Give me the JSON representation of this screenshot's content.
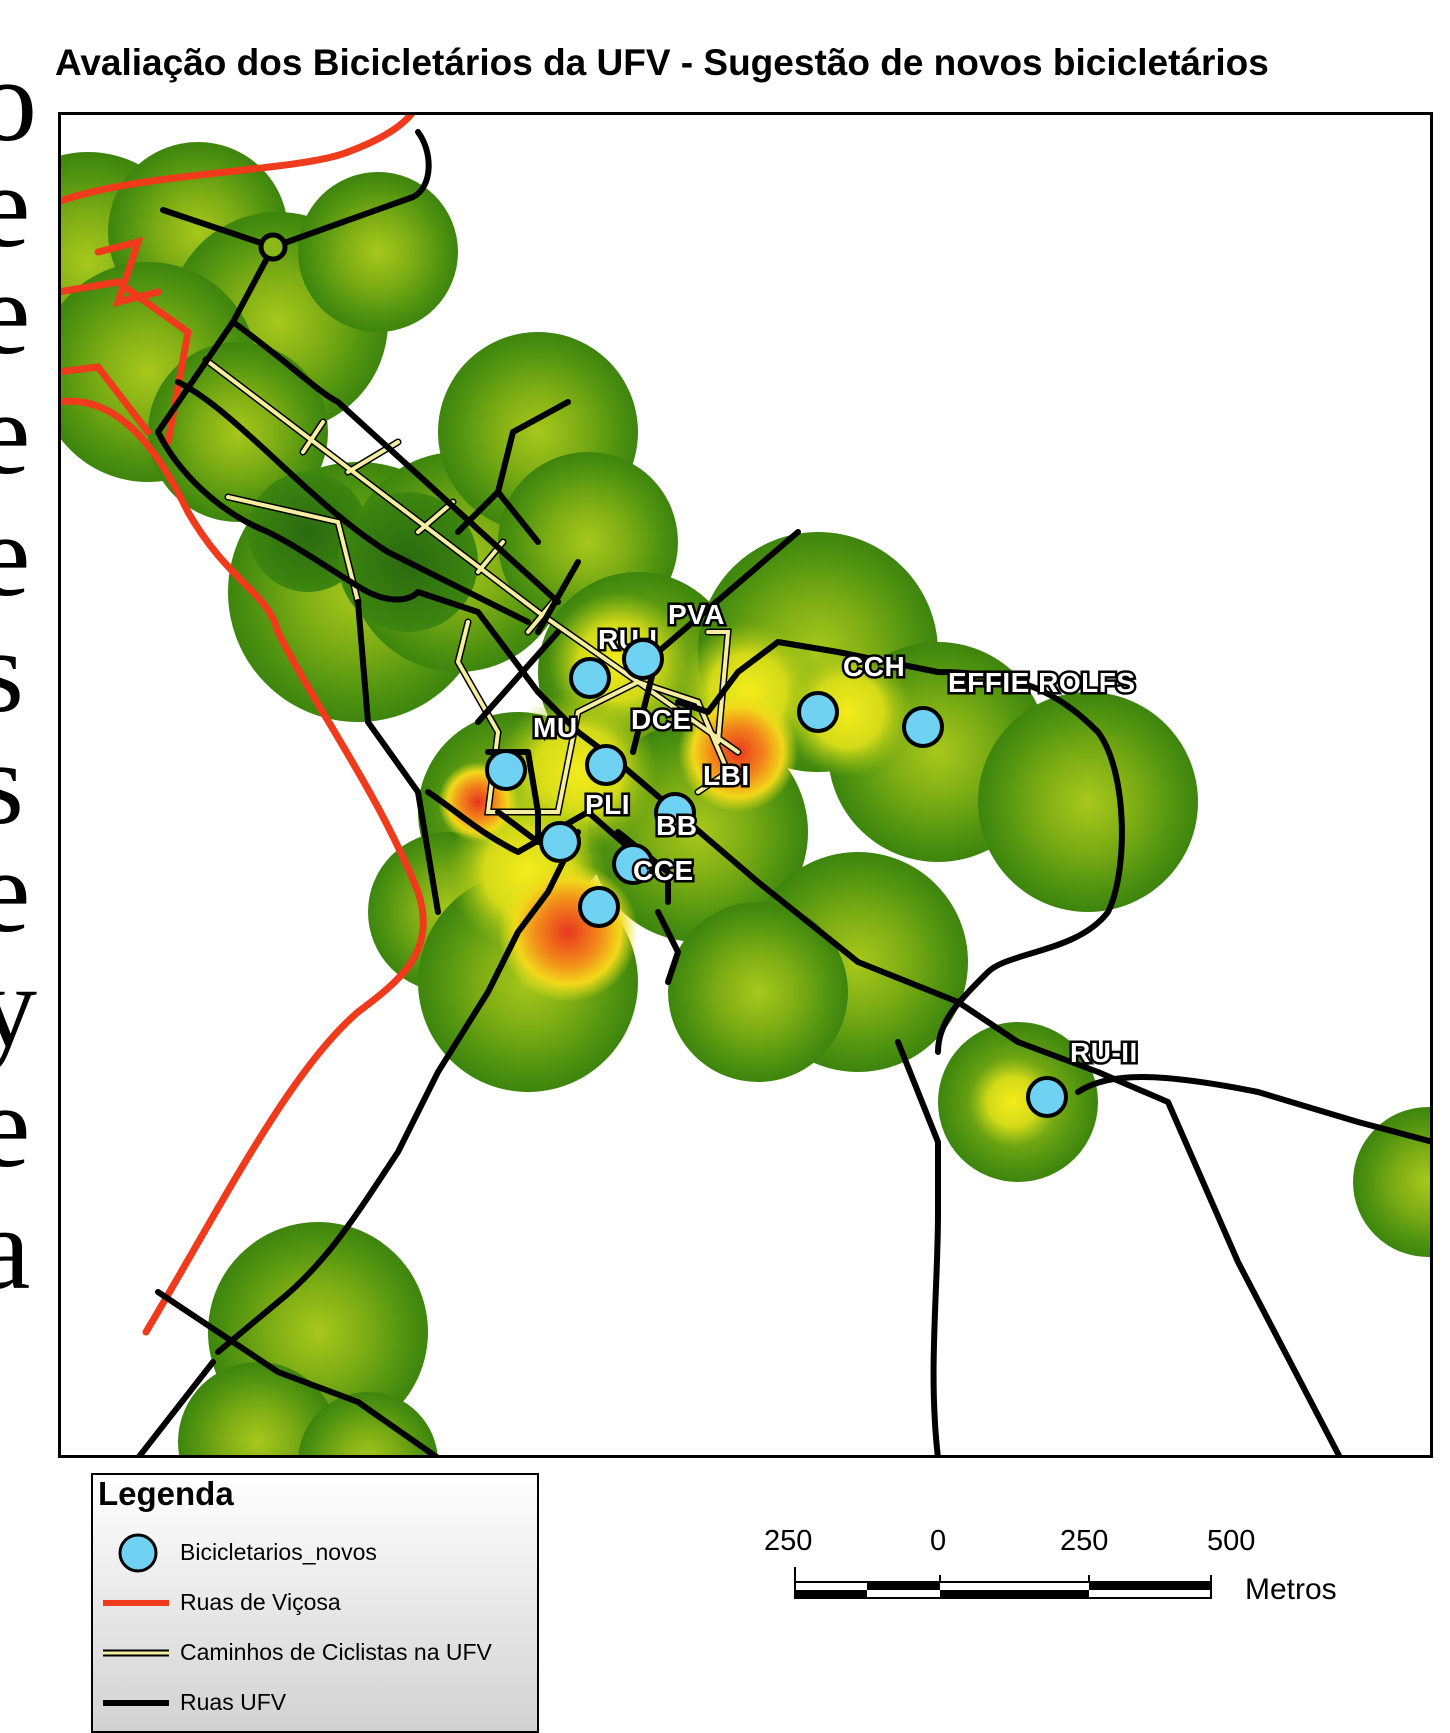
{
  "title": "Avaliação dos Bicicletários da UFV - Sugestão de novos bicicletários",
  "side_text": [
    "o",
    "e",
    "e",
    "e",
    "e",
    "s",
    "s",
    "e",
    "y",
    "e",
    "a"
  ],
  "colors": {
    "heat_low": "#2e7d14",
    "heat_mid": "#a8c81c",
    "heat_high": "#f2e81a",
    "heat_peak": "#e8361e",
    "points": "#6fd2f2",
    "roads_vicosa": "#f03a1c",
    "bike_paths": "#f5eea0",
    "roads_ufv": "#000000"
  },
  "points": [
    {
      "label": "RU-I",
      "icon": "bike-rack-circle"
    },
    {
      "label": "PVA",
      "icon": "bike-rack-circle"
    },
    {
      "label": "CCH",
      "icon": "bike-rack-circle"
    },
    {
      "label": "EFFIE ROLFS",
      "icon": "bike-rack-circle"
    },
    {
      "label": "MU",
      "icon": "bike-rack-circle"
    },
    {
      "label": "DCE",
      "icon": "bike-rack-circle"
    },
    {
      "label": "LBI",
      "icon": "bike-rack-circle"
    },
    {
      "label": "PLI",
      "icon": "bike-rack-circle"
    },
    {
      "label": "BB",
      "icon": "bike-rack-circle"
    },
    {
      "label": "CCE",
      "icon": "bike-rack-circle"
    },
    {
      "label": "RU-II",
      "icon": "bike-rack-circle"
    }
  ],
  "legend": {
    "title": "Legenda",
    "items": [
      {
        "label": "Bicicletarios_novos",
        "symbol": "circle"
      },
      {
        "label": "Ruas de Viçosa",
        "symbol": "red-line"
      },
      {
        "label": "Caminhos de  Ciclistas na UFV",
        "symbol": "yellow-line"
      },
      {
        "label": "Ruas UFV",
        "symbol": "black-line"
      }
    ]
  },
  "scale_bar": {
    "ticks": [
      "250",
      "0",
      "250",
      "500"
    ],
    "unit": "Metros"
  }
}
